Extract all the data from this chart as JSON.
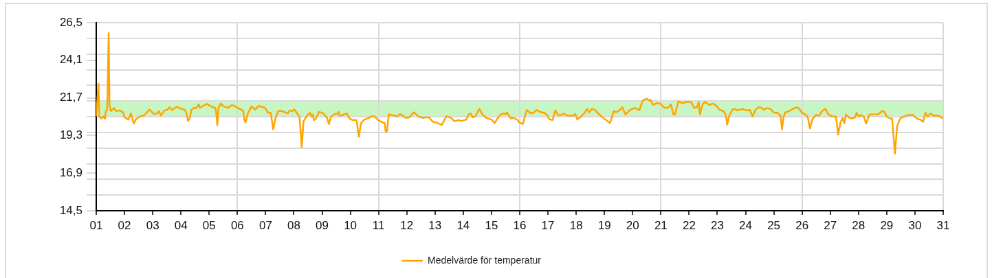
{
  "chart_data": {
    "type": "line",
    "x": [
      1.0,
      1.08,
      1.11,
      1.19,
      1.26,
      1.31,
      1.34,
      1.39,
      1.44,
      1.47,
      1.52,
      1.63,
      1.71,
      1.83,
      1.95,
      2.0,
      2.14,
      2.23,
      2.33,
      2.41,
      2.56,
      2.68,
      2.8,
      2.88,
      3.05,
      3.17,
      3.22,
      3.29,
      3.41,
      3.53,
      3.6,
      3.68,
      3.86,
      3.94,
      4.14,
      4.2,
      4.25,
      4.3,
      4.38,
      4.47,
      4.55,
      4.63,
      4.67,
      4.79,
      4.91,
      5.07,
      5.2,
      5.24,
      5.29,
      5.33,
      5.41,
      5.52,
      5.68,
      5.78,
      5.86,
      6.0,
      6.13,
      6.21,
      6.25,
      6.29,
      6.37,
      6.5,
      6.63,
      6.76,
      6.97,
      7.09,
      7.18,
      7.27,
      7.35,
      7.45,
      7.57,
      7.78,
      7.86,
      7.94,
      8.02,
      8.14,
      8.2,
      8.28,
      8.34,
      8.47,
      8.57,
      8.63,
      8.67,
      8.71,
      8.78,
      8.89,
      9.04,
      9.18,
      9.24,
      9.32,
      9.44,
      9.54,
      9.59,
      9.62,
      9.73,
      9.87,
      9.97,
      10.09,
      10.22,
      10.3,
      10.38,
      10.5,
      10.66,
      10.74,
      10.86,
      10.99,
      11.15,
      11.22,
      11.25,
      11.3,
      11.36,
      11.48,
      11.58,
      11.64,
      11.76,
      11.97,
      12.09,
      12.25,
      12.42,
      12.58,
      12.66,
      12.78,
      12.93,
      13.05,
      13.13,
      13.24,
      13.4,
      13.54,
      13.7,
      13.82,
      13.95,
      14.11,
      14.19,
      14.27,
      14.33,
      14.43,
      14.57,
      14.68,
      14.82,
      15.0,
      15.11,
      15.21,
      15.33,
      15.44,
      15.5,
      15.55,
      15.68,
      15.77,
      15.91,
      15.99,
      16.11,
      16.17,
      16.25,
      16.39,
      16.51,
      16.59,
      16.71,
      16.88,
      16.98,
      17.04,
      17.16,
      17.26,
      17.36,
      17.48,
      17.56,
      17.69,
      17.89,
      17.97,
      18.04,
      18.17,
      18.3,
      18.38,
      18.46,
      18.56,
      18.66,
      18.78,
      18.91,
      19.03,
      19.2,
      19.33,
      19.42,
      19.55,
      19.63,
      19.75,
      19.91,
      20.07,
      20.24,
      20.36,
      20.5,
      20.56,
      20.63,
      20.72,
      20.85,
      20.97,
      21.13,
      21.26,
      21.36,
      21.44,
      21.5,
      21.62,
      21.77,
      21.91,
      22.07,
      22.18,
      22.28,
      22.34,
      22.38,
      22.48,
      22.56,
      22.72,
      22.84,
      22.97,
      23.09,
      23.21,
      23.29,
      23.35,
      23.41,
      23.54,
      23.62,
      23.7,
      23.9,
      24.03,
      24.15,
      24.25,
      24.35,
      24.45,
      24.57,
      24.64,
      24.74,
      24.88,
      25.01,
      25.13,
      25.24,
      25.29,
      25.35,
      25.41,
      25.55,
      25.67,
      25.8,
      25.88,
      26.0,
      26.12,
      26.2,
      26.28,
      26.36,
      26.49,
      26.61,
      26.71,
      26.83,
      26.93,
      27.05,
      27.2,
      27.28,
      27.36,
      27.44,
      27.5,
      27.56,
      27.68,
      27.78,
      27.88,
      27.93,
      28.01,
      28.09,
      28.19,
      28.27,
      28.39,
      28.56,
      28.69,
      28.84,
      28.92,
      29.0,
      29.13,
      29.19,
      29.29,
      29.37,
      29.49,
      29.65,
      29.73,
      29.94,
      30.06,
      30.18,
      30.29,
      30.37,
      30.45,
      30.55,
      30.67,
      30.83,
      31.0
    ],
    "series": [
      {
        "name": "Medelvärde för temperatur",
        "color": "#ffa500",
        "values": [
          20.57,
          22.6,
          20.5,
          20.38,
          20.52,
          20.38,
          20.86,
          20.93,
          25.83,
          21.22,
          20.86,
          21.05,
          20.86,
          20.9,
          20.78,
          20.46,
          20.32,
          20.71,
          20.06,
          20.35,
          20.52,
          20.57,
          20.78,
          20.96,
          20.67,
          20.71,
          20.86,
          20.57,
          20.89,
          20.96,
          21.1,
          20.93,
          21.15,
          21.05,
          20.93,
          20.71,
          20.23,
          20.35,
          20.96,
          21.07,
          21.05,
          21.29,
          21.07,
          21.19,
          21.32,
          21.15,
          21.07,
          20.93,
          19.95,
          21.07,
          21.34,
          21.15,
          21.07,
          21.22,
          21.22,
          21.07,
          20.96,
          20.86,
          20.28,
          20.13,
          20.71,
          21.15,
          20.96,
          21.19,
          21.07,
          20.75,
          20.75,
          19.69,
          20.42,
          20.86,
          20.86,
          20.71,
          20.9,
          20.86,
          20.96,
          20.64,
          20.5,
          18.57,
          20.2,
          20.57,
          20.75,
          20.5,
          20.64,
          20.28,
          20.38,
          20.81,
          20.71,
          20.42,
          20.03,
          20.5,
          20.67,
          20.68,
          20.81,
          20.57,
          20.61,
          20.71,
          20.38,
          20.28,
          20.28,
          19.21,
          20.09,
          20.32,
          20.42,
          20.52,
          20.52,
          20.28,
          20.13,
          20.09,
          19.55,
          19.59,
          20.64,
          20.61,
          20.57,
          20.5,
          20.67,
          20.42,
          20.46,
          20.78,
          20.5,
          20.42,
          20.46,
          20.46,
          20.17,
          20.13,
          20.06,
          19.98,
          20.52,
          20.46,
          20.2,
          20.28,
          20.23,
          20.32,
          20.64,
          20.71,
          20.46,
          20.52,
          21.0,
          20.64,
          20.42,
          20.32,
          20.09,
          20.38,
          20.64,
          20.71,
          20.64,
          20.78,
          20.38,
          20.42,
          20.32,
          20.13,
          20.03,
          20.42,
          20.93,
          20.71,
          20.78,
          20.93,
          20.81,
          20.74,
          20.57,
          20.35,
          20.28,
          20.9,
          20.61,
          20.61,
          20.7,
          20.57,
          20.57,
          20.67,
          20.32,
          20.5,
          20.75,
          21.0,
          20.78,
          21.0,
          20.93,
          20.71,
          20.5,
          20.32,
          20.09,
          20.86,
          20.78,
          20.93,
          21.1,
          20.64,
          20.93,
          21.05,
          20.93,
          21.54,
          21.66,
          21.54,
          21.58,
          21.25,
          21.36,
          21.34,
          21.07,
          21.07,
          21.29,
          20.64,
          20.64,
          21.48,
          21.36,
          21.44,
          21.44,
          21.07,
          21.1,
          21.44,
          20.64,
          21.29,
          21.44,
          21.25,
          21.34,
          21.19,
          20.93,
          20.86,
          20.67,
          19.98,
          20.52,
          20.96,
          21.0,
          20.9,
          21.0,
          20.9,
          20.93,
          20.52,
          20.93,
          21.1,
          21.07,
          20.93,
          21.05,
          21.0,
          20.75,
          20.75,
          20.57,
          19.69,
          20.5,
          20.78,
          20.86,
          21.0,
          21.1,
          21.05,
          20.75,
          20.64,
          20.5,
          19.74,
          20.32,
          20.61,
          20.57,
          20.86,
          21.0,
          20.67,
          20.52,
          20.5,
          19.36,
          20.13,
          20.42,
          20.09,
          20.64,
          20.42,
          20.38,
          20.46,
          20.75,
          20.5,
          20.61,
          20.5,
          20.06,
          20.64,
          20.64,
          20.64,
          20.86,
          20.81,
          20.5,
          20.38,
          20.38,
          18.14,
          19.91,
          20.42,
          20.52,
          20.61,
          20.61,
          20.38,
          20.32,
          20.17,
          20.75,
          20.5,
          20.71,
          20.57,
          20.57,
          20.38
        ]
      }
    ],
    "xlim": [
      1,
      31
    ],
    "xticks": [
      {
        "value": 1,
        "label": "01"
      },
      {
        "value": 2,
        "label": "02"
      },
      {
        "value": 3,
        "label": "03"
      },
      {
        "value": 4,
        "label": "04"
      },
      {
        "value": 5,
        "label": "05"
      },
      {
        "value": 6,
        "label": "06"
      },
      {
        "value": 7,
        "label": "07"
      },
      {
        "value": 8,
        "label": "08"
      },
      {
        "value": 9,
        "label": "09"
      },
      {
        "value": 10,
        "label": "10"
      },
      {
        "value": 11,
        "label": "11"
      },
      {
        "value": 12,
        "label": "12"
      },
      {
        "value": 13,
        "label": "13"
      },
      {
        "value": 14,
        "label": "14"
      },
      {
        "value": 15,
        "label": "15"
      },
      {
        "value": 16,
        "label": "16"
      },
      {
        "value": 17,
        "label": "17"
      },
      {
        "value": 18,
        "label": "18"
      },
      {
        "value": 19,
        "label": "19"
      },
      {
        "value": 20,
        "label": "20"
      },
      {
        "value": 21,
        "label": "21"
      },
      {
        "value": 22,
        "label": "22"
      },
      {
        "value": 23,
        "label": "23"
      },
      {
        "value": 24,
        "label": "24"
      },
      {
        "value": 25,
        "label": "25"
      },
      {
        "value": 26,
        "label": "26"
      },
      {
        "value": 27,
        "label": "27"
      },
      {
        "value": 28,
        "label": "28"
      },
      {
        "value": 29,
        "label": "29"
      },
      {
        "value": 30,
        "label": "30"
      },
      {
        "value": 31,
        "label": "31"
      }
    ],
    "ylim": [
      14.5,
      26.5
    ],
    "yticks": [
      {
        "value": 14.5,
        "label": "14,5"
      },
      {
        "value": 15.5,
        "label": null
      },
      {
        "value": 16.5,
        "label": null
      },
      {
        "value": 16.9,
        "label": "16,9"
      },
      {
        "value": 17.5,
        "label": null
      },
      {
        "value": 18.5,
        "label": null
      },
      {
        "value": 19.3,
        "label": "19,3"
      },
      {
        "value": 19.5,
        "label": null
      },
      {
        "value": 20.5,
        "label": null
      },
      {
        "value": 21.5,
        "label": null
      },
      {
        "value": 21.7,
        "label": "21,7"
      },
      {
        "value": 22.5,
        "label": null
      },
      {
        "value": 23.5,
        "label": null
      },
      {
        "value": 24.1,
        "label": "24,1"
      },
      {
        "value": 24.5,
        "label": null
      },
      {
        "value": 25.5,
        "label": null
      },
      {
        "value": 26.5,
        "label": "26,5"
      }
    ],
    "bands": [
      {
        "axis": "y",
        "from": 20.5,
        "to": 21.45,
        "color": "#c8f6c3"
      }
    ],
    "grid": true,
    "legend": "bottom"
  }
}
